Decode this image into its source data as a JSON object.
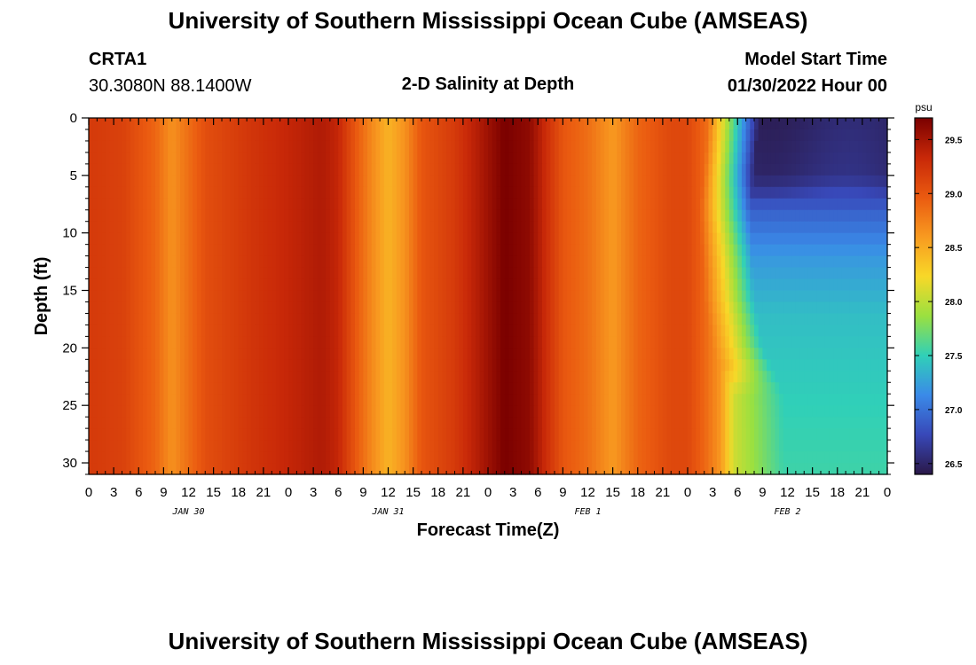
{
  "header": {
    "title": "University of Southern Mississippi Ocean Cube (AMSEAS)",
    "station": "CRTA1",
    "coords": "30.3080N  88.1400W",
    "subtitle": "2-D Salinity at Depth",
    "model_start_label": "Model Start Time",
    "model_start_value": "01/30/2022 Hour 00"
  },
  "footer": {
    "title": "University of Southern Mississippi Ocean Cube (AMSEAS)"
  },
  "chart_data": {
    "type": "heatmap",
    "title": "2-D Salinity at Depth",
    "xlabel": "Forecast Time(Z)",
    "ylabel": "Depth (ft)",
    "x_tick_labels": [
      "0",
      "3",
      "6",
      "9",
      "12",
      "15",
      "18",
      "21",
      "0",
      "3",
      "6",
      "9",
      "12",
      "15",
      "18",
      "21",
      "0",
      "3",
      "6",
      "9",
      "12",
      "15",
      "18",
      "21",
      "0",
      "3",
      "6",
      "9",
      "12",
      "15",
      "18",
      "21",
      "0"
    ],
    "x_hours_range": [
      0,
      96
    ],
    "date_labels": [
      {
        "label": "JAN 30",
        "hour": 12
      },
      {
        "label": "JAN 31",
        "hour": 36
      },
      {
        "label": "FEB 1",
        "hour": 60
      },
      {
        "label": "FEB 2",
        "hour": 84
      }
    ],
    "y_ticks": [
      0,
      5,
      10,
      15,
      20,
      25,
      30
    ],
    "ylim": [
      0,
      31
    ],
    "colorbar": {
      "unit": "psu",
      "range": [
        26.4,
        29.7
      ],
      "ticks": [
        "29.5",
        "29.0",
        "28.5",
        "28.0",
        "27.5",
        "27.0",
        "26.5"
      ],
      "colors": [
        "#2a1848",
        "#3848b8",
        "#3a8ae8",
        "#30d0b8",
        "#9ae040",
        "#f8d828",
        "#f89a20",
        "#ea5a10",
        "#c82808",
        "#7a0000"
      ]
    },
    "salinity_time_profile": [
      {
        "hour": 0,
        "psu": 29.2
      },
      {
        "hour": 4,
        "psu": 29.15
      },
      {
        "hour": 8,
        "psu": 28.9
      },
      {
        "hour": 10,
        "psu": 28.65
      },
      {
        "hour": 12,
        "psu": 28.85
      },
      {
        "hour": 14,
        "psu": 29.05
      },
      {
        "hour": 17,
        "psu": 29.15
      },
      {
        "hour": 20,
        "psu": 29.25
      },
      {
        "hour": 24,
        "psu": 29.35
      },
      {
        "hour": 28,
        "psu": 29.45
      },
      {
        "hour": 30,
        "psu": 29.35
      },
      {
        "hour": 32,
        "psu": 29.0
      },
      {
        "hour": 34,
        "psu": 28.7
      },
      {
        "hour": 36,
        "psu": 28.45
      },
      {
        "hour": 38,
        "psu": 28.65
      },
      {
        "hour": 40,
        "psu": 29.0
      },
      {
        "hour": 44,
        "psu": 29.2
      },
      {
        "hour": 47,
        "psu": 29.45
      },
      {
        "hour": 50,
        "psu": 29.7
      },
      {
        "hour": 53,
        "psu": 29.6
      },
      {
        "hour": 55,
        "psu": 29.3
      },
      {
        "hour": 57,
        "psu": 29.0
      },
      {
        "hour": 60,
        "psu": 28.85
      },
      {
        "hour": 63,
        "psu": 28.6
      },
      {
        "hour": 66,
        "psu": 28.9
      },
      {
        "hour": 70,
        "psu": 29.1
      },
      {
        "hour": 72,
        "psu": 29.1
      },
      {
        "hour": 74,
        "psu": 28.9
      },
      {
        "hour": 76,
        "psu": 28.6
      },
      {
        "hour": 78,
        "psu": 27.9
      },
      {
        "hour": 80,
        "psu": 27.4
      },
      {
        "hour": 84,
        "psu": 26.9
      },
      {
        "hour": 88,
        "psu": 26.6
      },
      {
        "hour": 92,
        "psu": 26.45
      },
      {
        "hour": 96,
        "psu": 26.45
      }
    ],
    "salinity_depth_profile_late": [
      {
        "depth": 0,
        "psu": 26.5
      },
      {
        "depth": 5,
        "psu": 26.55
      },
      {
        "depth": 8,
        "psu": 26.9
      },
      {
        "depth": 12,
        "psu": 27.2
      },
      {
        "depth": 17,
        "psu": 27.4
      },
      {
        "depth": 21,
        "psu": 27.45
      },
      {
        "depth": 25,
        "psu": 27.5
      },
      {
        "depth": 31,
        "psu": 27.55
      }
    ],
    "front_depth_profile": [
      {
        "depth": 0,
        "hour": 77.5
      },
      {
        "depth": 8,
        "hour": 76.5
      },
      {
        "depth": 16,
        "hour": 77
      },
      {
        "depth": 20,
        "hour": 78
      },
      {
        "depth": 24,
        "hour": 80.5
      },
      {
        "depth": 31,
        "hour": 80.5
      }
    ]
  }
}
